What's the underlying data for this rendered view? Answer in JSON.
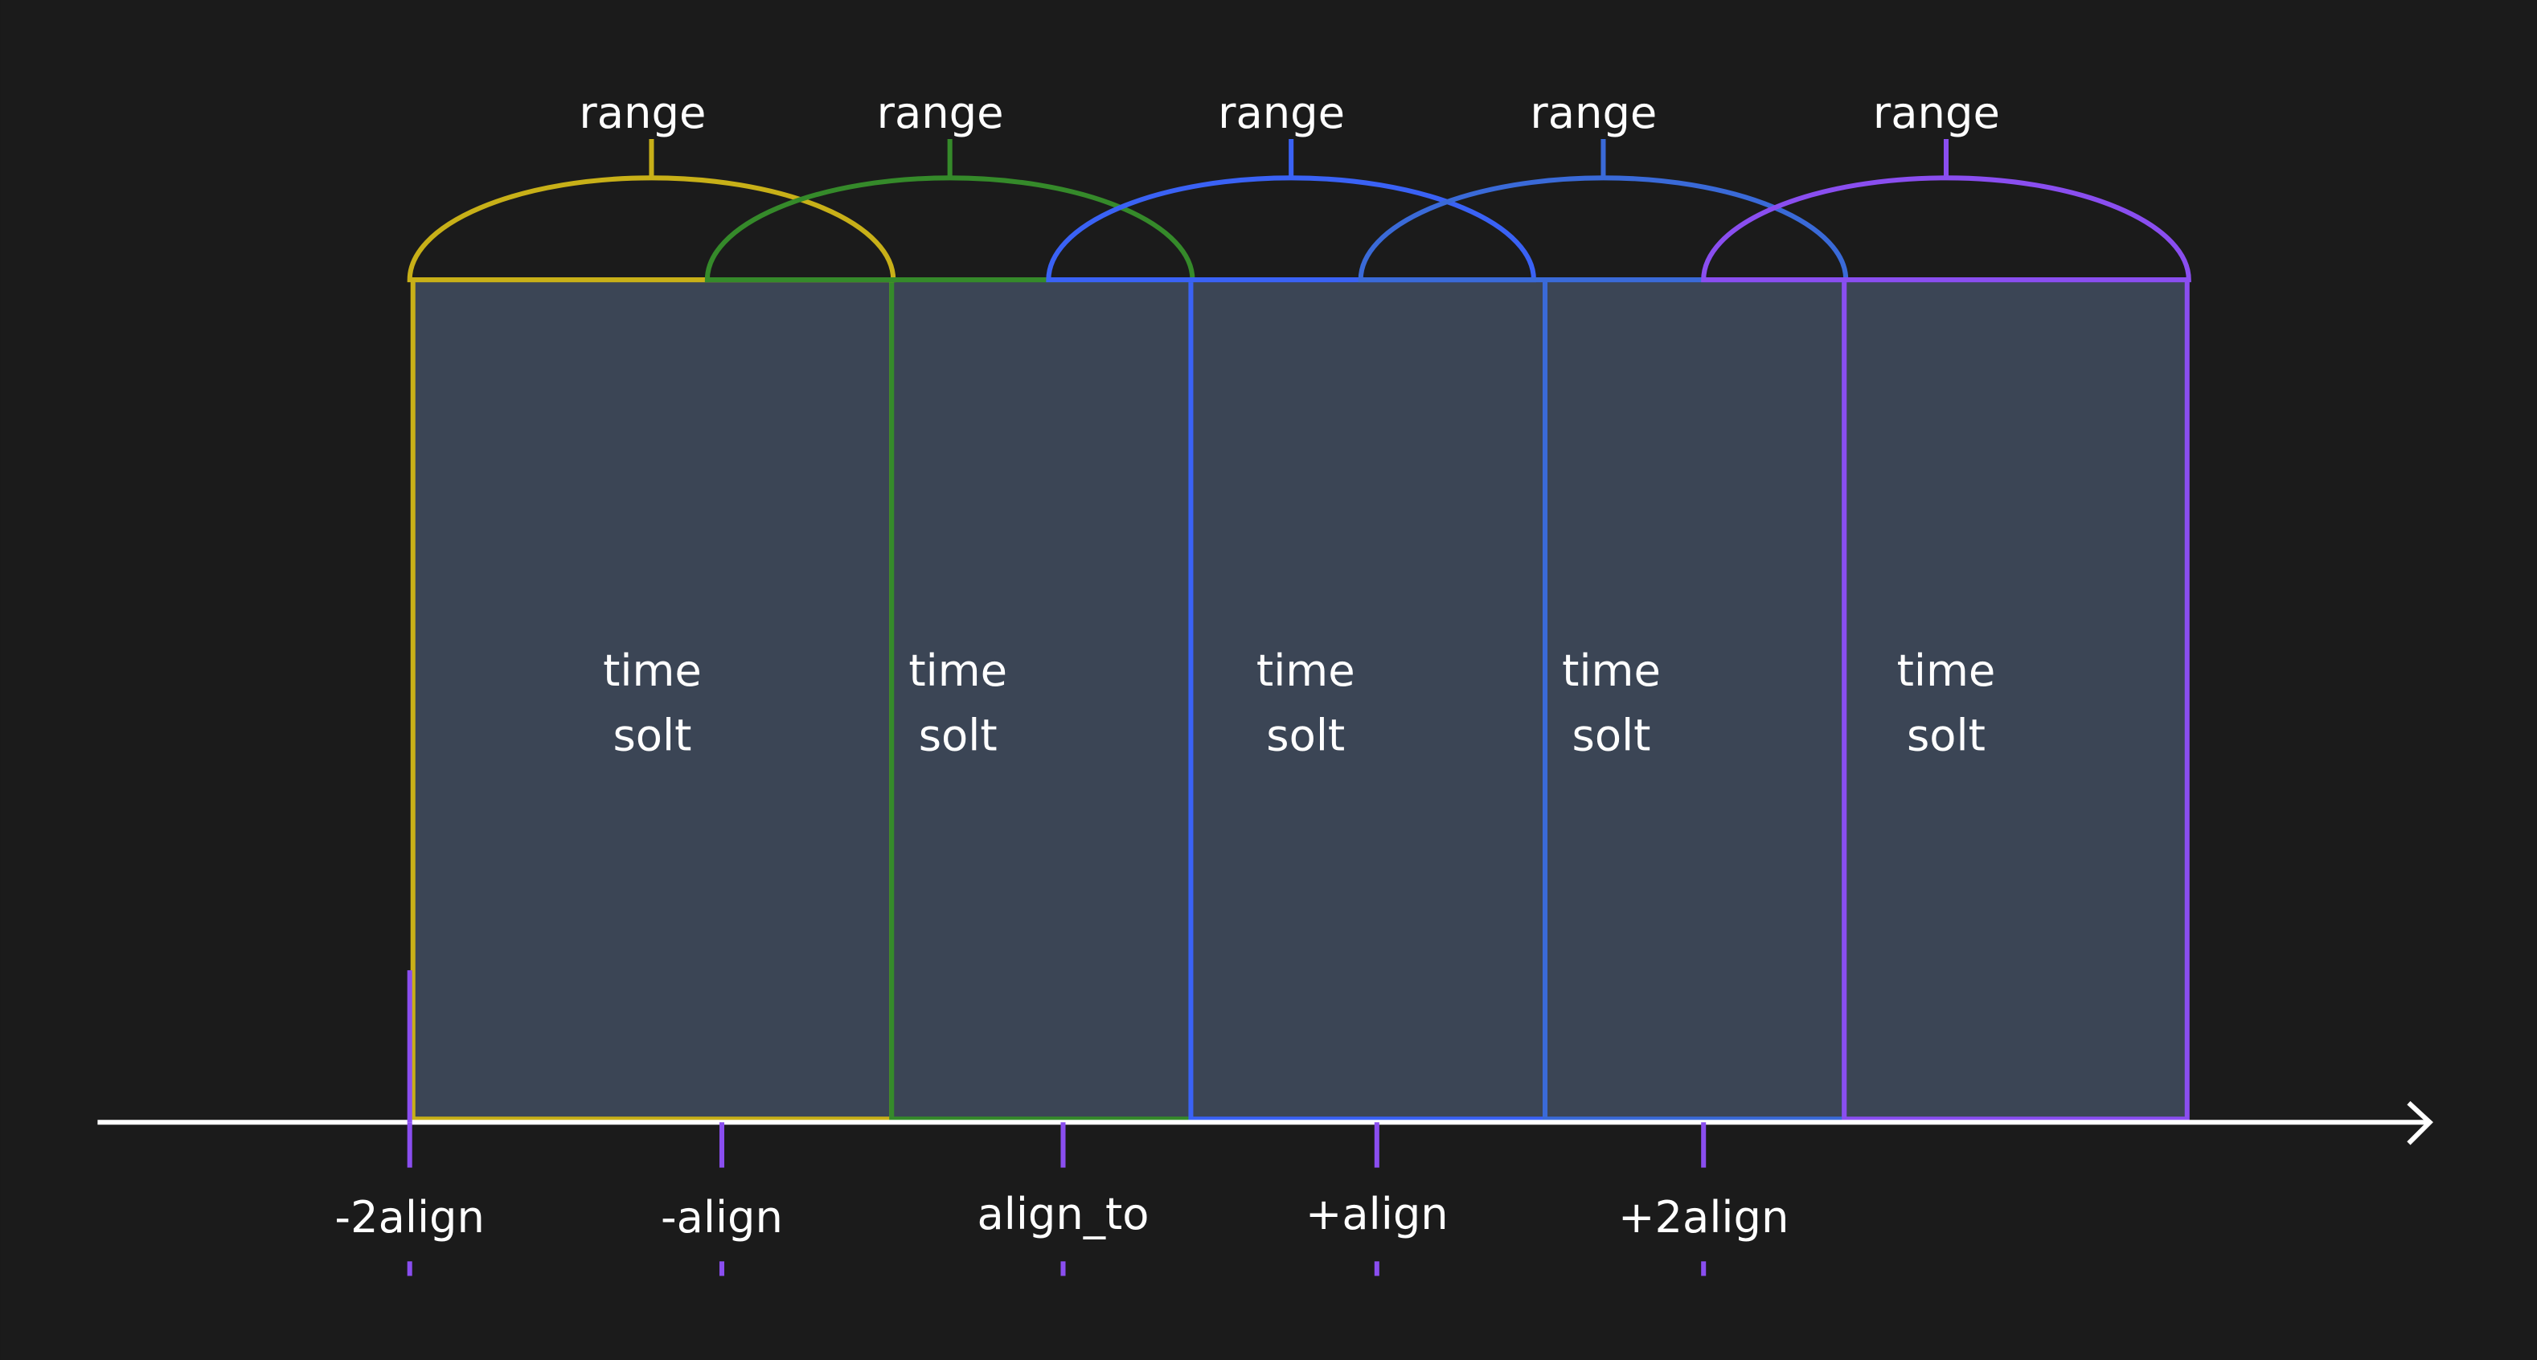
{
  "colors": {
    "background": "#1b1b1b",
    "slot_fill": "#3b4555",
    "axis": "#ffffff",
    "tick": "#8a4ef0",
    "slots": [
      "#c8b018",
      "#358a2a",
      "#3a62f5",
      "#3a6ad8",
      "#8a4ef0"
    ]
  },
  "ranges": [
    {
      "label": "range"
    },
    {
      "label": "range"
    },
    {
      "label": "range"
    },
    {
      "label": "range"
    },
    {
      "label": "range"
    }
  ],
  "slots": [
    {
      "line1": "time",
      "line2": "solt"
    },
    {
      "line1": "time",
      "line2": "solt"
    },
    {
      "line1": "time",
      "line2": "solt"
    },
    {
      "line1": "time",
      "line2": "solt"
    },
    {
      "line1": "time",
      "line2": "solt"
    }
  ],
  "ticks": [
    {
      "label": "-2align"
    },
    {
      "label": "-align"
    },
    {
      "label": "align_to"
    },
    {
      "label": "+align"
    },
    {
      "label": "+2align"
    }
  ]
}
